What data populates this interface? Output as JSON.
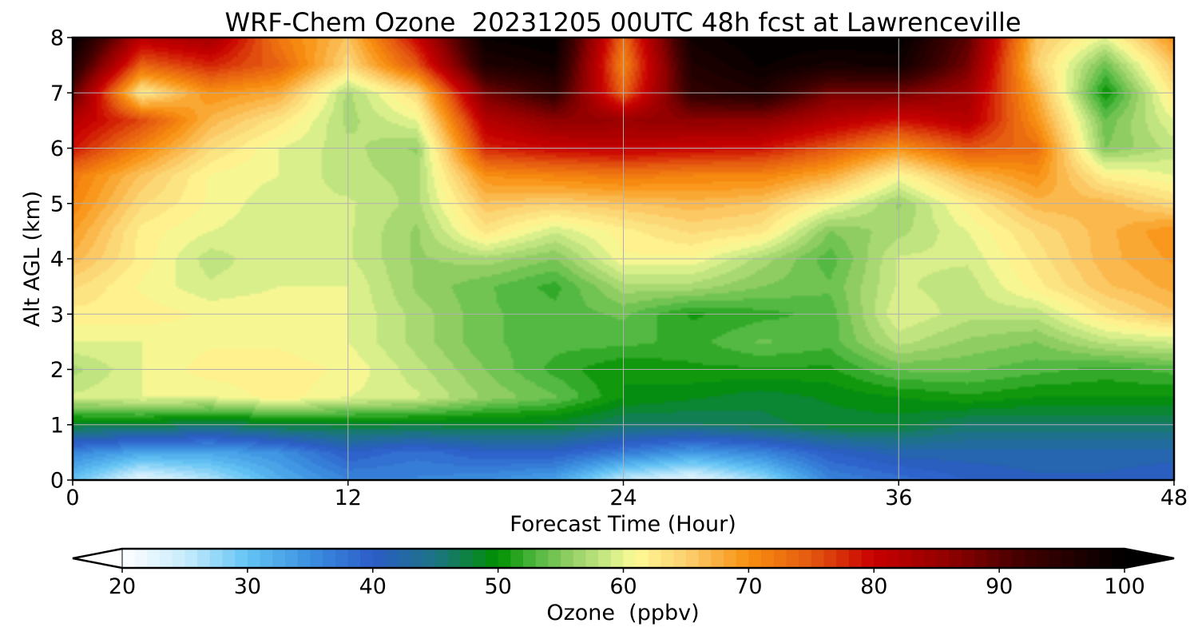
{
  "chart_data": {
    "type": "heatmap",
    "title": "WRF-Chem Ozone  20231205 00UTC 48h fcst at Lawrenceville",
    "xlabel": "Forecast Time (Hour)",
    "ylabel": "Alt AGL (km)",
    "xlim": [
      0,
      48
    ],
    "ylim": [
      0,
      8
    ],
    "x_ticks": [
      0,
      12,
      24,
      36,
      48
    ],
    "y_ticks": [
      0,
      1,
      2,
      3,
      4,
      5,
      6,
      7,
      8
    ],
    "grid": true,
    "colorbar": {
      "label": "Ozone  (ppbv)",
      "min": 20,
      "max": 100,
      "ticks": [
        20,
        30,
        40,
        50,
        60,
        70,
        80,
        90,
        100
      ],
      "extend": "both",
      "orientation": "horizontal",
      "placement": "bottom"
    },
    "colormap": [
      {
        "v": 20,
        "c": "#ffffff"
      },
      {
        "v": 25,
        "c": "#c8ecfc"
      },
      {
        "v": 30,
        "c": "#64c4f4"
      },
      {
        "v": 35,
        "c": "#3c90e0"
      },
      {
        "v": 40,
        "c": "#2c5cc8"
      },
      {
        "v": 45,
        "c": "#1c7484"
      },
      {
        "v": 50,
        "c": "#009000"
      },
      {
        "v": 53,
        "c": "#50b840"
      },
      {
        "v": 56,
        "c": "#98d068"
      },
      {
        "v": 59,
        "c": "#d0ec88"
      },
      {
        "v": 61,
        "c": "#fffa96"
      },
      {
        "v": 65,
        "c": "#fcd070"
      },
      {
        "v": 70,
        "c": "#f89010"
      },
      {
        "v": 75,
        "c": "#e45810"
      },
      {
        "v": 80,
        "c": "#c80000"
      },
      {
        "v": 86,
        "c": "#900000"
      },
      {
        "v": 92,
        "c": "#400000"
      },
      {
        "v": 100,
        "c": "#000000"
      }
    ],
    "z_x": [
      0,
      3,
      6,
      9,
      12,
      15,
      18,
      21,
      24,
      27,
      30,
      33,
      36,
      39,
      42,
      45,
      48
    ],
    "z_y": [
      0,
      0.5,
      1,
      1.5,
      2,
      2.5,
      3,
      3.5,
      4,
      4.5,
      5,
      5.5,
      6,
      6.5,
      7,
      7.5,
      8
    ],
    "z": [
      [
        30,
        22,
        26,
        32,
        36,
        36,
        35,
        33,
        25,
        22,
        27,
        36,
        38,
        40,
        41,
        41,
        40
      ],
      [
        36,
        33,
        33,
        35,
        40,
        38,
        40,
        40,
        37,
        34,
        36,
        40,
        42,
        42,
        42,
        42,
        42
      ],
      [
        48,
        48,
        46,
        48,
        48,
        48,
        48,
        48,
        46,
        46,
        47,
        48,
        48,
        46,
        46,
        46,
        46
      ],
      [
        59,
        60,
        60,
        62,
        60,
        59,
        56,
        54,
        50,
        49,
        48,
        49,
        50,
        51,
        50,
        50,
        50
      ],
      [
        57,
        60,
        62,
        62,
        61,
        58,
        55,
        52,
        50,
        51,
        51,
        51,
        54,
        54,
        53,
        52,
        53
      ],
      [
        60,
        60,
        61,
        61,
        60,
        57,
        54,
        53,
        53,
        52,
        54,
        53,
        58,
        56,
        55,
        58,
        59
      ],
      [
        62,
        62,
        61,
        61,
        60,
        57,
        54,
        53,
        54,
        51,
        52,
        53,
        60,
        58,
        58,
        63,
        66
      ],
      [
        64,
        61,
        59,
        60,
        60,
        56,
        54,
        52,
        57,
        57,
        55,
        54,
        59,
        58,
        62,
        66,
        68
      ],
      [
        67,
        62,
        58,
        60,
        59,
        56,
        57,
        55,
        61,
        61,
        57,
        53,
        59,
        59,
        63,
        67,
        69
      ],
      [
        69,
        62,
        60,
        59,
        59,
        56,
        63,
        59,
        62,
        64,
        63,
        55,
        57,
        60,
        64,
        67,
        70
      ],
      [
        71,
        64,
        61,
        59,
        59,
        57,
        66,
        65,
        66,
        67,
        66,
        61,
        56,
        62,
        67,
        67,
        64
      ],
      [
        72,
        66,
        61,
        60,
        58,
        57,
        70,
        71,
        72,
        71,
        71,
        68,
        61,
        67,
        70,
        62,
        60
      ],
      [
        79,
        71,
        64,
        60,
        58,
        56,
        78,
        80,
        81,
        80,
        79,
        75,
        70,
        75,
        73,
        55,
        58
      ],
      [
        82,
        76,
        67,
        63,
        57,
        60,
        82,
        86,
        85,
        86,
        86,
        82,
        79,
        82,
        70,
        54,
        60
      ],
      [
        90,
        62,
        70,
        68,
        57,
        64,
        88,
        94,
        74,
        94,
        96,
        88,
        88,
        84,
        68,
        50,
        63
      ],
      [
        96,
        74,
        78,
        74,
        64,
        75,
        96,
        98,
        71,
        96,
        99,
        97,
        98,
        88,
        65,
        54,
        66
      ],
      [
        100,
        82,
        84,
        72,
        66,
        80,
        99,
        100,
        73,
        98,
        100,
        100,
        100,
        90,
        66,
        60,
        70
      ]
    ]
  }
}
